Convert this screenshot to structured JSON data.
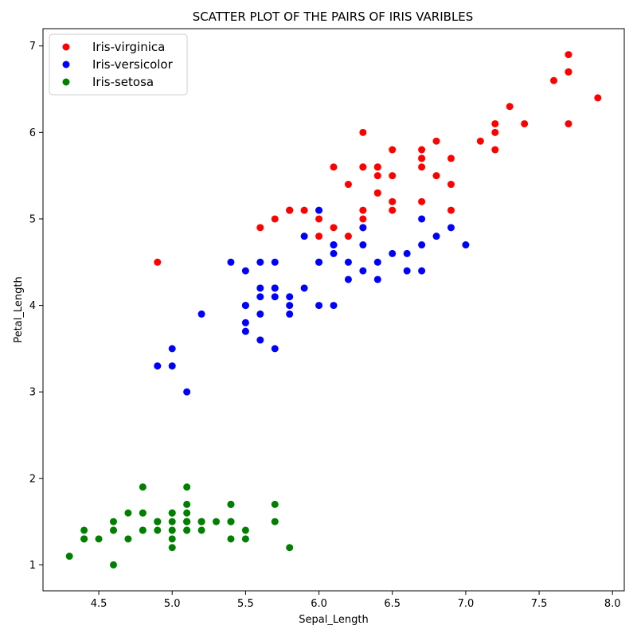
{
  "chart_data": {
    "type": "scatter",
    "title": "SCATTER PLOT OF THE PAIRS OF IRIS VARIBLES",
    "xlabel": "Sepal_Length",
    "ylabel": "Petal_Length",
    "xlim": [
      4.12,
      8.08
    ],
    "ylim": [
      0.7,
      7.2
    ],
    "xticks": [
      "4.5",
      "5.0",
      "5.5",
      "6.0",
      "6.5",
      "7.0",
      "7.5",
      "8.0"
    ],
    "yticks": [
      "1",
      "2",
      "3",
      "4",
      "5",
      "6",
      "7"
    ],
    "grid": false,
    "legend_position": "top-left",
    "series": [
      {
        "name": "Iris-virginica",
        "color": "#ff0000",
        "points": [
          [
            6.3,
            6.0
          ],
          [
            5.8,
            5.1
          ],
          [
            7.1,
            5.9
          ],
          [
            6.3,
            5.6
          ],
          [
            6.5,
            5.8
          ],
          [
            7.6,
            6.6
          ],
          [
            4.9,
            4.5
          ],
          [
            7.3,
            6.3
          ],
          [
            6.7,
            5.8
          ],
          [
            7.2,
            6.1
          ],
          [
            6.5,
            5.1
          ],
          [
            6.4,
            5.3
          ],
          [
            6.8,
            5.5
          ],
          [
            5.7,
            5.0
          ],
          [
            5.8,
            5.1
          ],
          [
            6.4,
            5.3
          ],
          [
            6.5,
            5.5
          ],
          [
            7.7,
            6.7
          ],
          [
            7.7,
            6.9
          ],
          [
            6.0,
            5.0
          ],
          [
            6.9,
            5.7
          ],
          [
            5.6,
            4.9
          ],
          [
            7.7,
            6.7
          ],
          [
            6.3,
            4.9
          ],
          [
            6.7,
            5.7
          ],
          [
            7.2,
            6.0
          ],
          [
            6.2,
            4.8
          ],
          [
            6.1,
            4.9
          ],
          [
            6.4,
            5.6
          ],
          [
            7.2,
            5.8
          ],
          [
            7.4,
            6.1
          ],
          [
            7.9,
            6.4
          ],
          [
            6.4,
            5.6
          ],
          [
            6.3,
            5.1
          ],
          [
            6.1,
            5.6
          ],
          [
            7.7,
            6.1
          ],
          [
            6.3,
            5.6
          ],
          [
            6.4,
            5.5
          ],
          [
            6.0,
            4.8
          ],
          [
            6.9,
            5.4
          ],
          [
            6.7,
            5.6
          ],
          [
            6.9,
            5.1
          ],
          [
            5.8,
            5.1
          ],
          [
            6.8,
            5.9
          ],
          [
            6.7,
            5.7
          ],
          [
            6.7,
            5.2
          ],
          [
            6.3,
            5.0
          ],
          [
            6.5,
            5.2
          ],
          [
            6.2,
            5.4
          ],
          [
            5.9,
            5.1
          ]
        ]
      },
      {
        "name": "Iris-versicolor",
        "color": "#0000ff",
        "points": [
          [
            7.0,
            4.7
          ],
          [
            6.4,
            4.5
          ],
          [
            6.9,
            4.9
          ],
          [
            5.5,
            4.0
          ],
          [
            6.5,
            4.6
          ],
          [
            5.7,
            4.5
          ],
          [
            6.3,
            4.7
          ],
          [
            4.9,
            3.3
          ],
          [
            6.6,
            4.6
          ],
          [
            5.2,
            3.9
          ],
          [
            5.0,
            3.5
          ],
          [
            5.9,
            4.2
          ],
          [
            6.0,
            4.0
          ],
          [
            6.1,
            4.7
          ],
          [
            5.6,
            3.6
          ],
          [
            6.7,
            4.4
          ],
          [
            5.6,
            4.5
          ],
          [
            5.8,
            4.1
          ],
          [
            6.2,
            4.5
          ],
          [
            5.6,
            3.9
          ],
          [
            5.9,
            4.8
          ],
          [
            6.1,
            4.0
          ],
          [
            6.3,
            4.9
          ],
          [
            6.1,
            4.7
          ],
          [
            6.4,
            4.3
          ],
          [
            6.6,
            4.4
          ],
          [
            6.8,
            4.8
          ],
          [
            6.7,
            5.0
          ],
          [
            6.0,
            4.5
          ],
          [
            5.7,
            3.5
          ],
          [
            5.5,
            3.8
          ],
          [
            5.5,
            3.7
          ],
          [
            5.8,
            3.9
          ],
          [
            6.0,
            5.1
          ],
          [
            5.4,
            4.5
          ],
          [
            6.0,
            4.5
          ],
          [
            6.7,
            4.7
          ],
          [
            6.3,
            4.4
          ],
          [
            5.6,
            4.1
          ],
          [
            5.5,
            4.0
          ],
          [
            5.5,
            4.4
          ],
          [
            6.1,
            4.6
          ],
          [
            5.8,
            4.0
          ],
          [
            5.0,
            3.3
          ],
          [
            5.6,
            4.2
          ],
          [
            5.7,
            4.2
          ],
          [
            5.7,
            4.2
          ],
          [
            6.2,
            4.3
          ],
          [
            5.1,
            3.0
          ],
          [
            5.7,
            4.1
          ]
        ]
      },
      {
        "name": "Iris-setosa",
        "color": "#008000",
        "points": [
          [
            5.1,
            1.4
          ],
          [
            4.9,
            1.4
          ],
          [
            4.7,
            1.3
          ],
          [
            4.6,
            1.5
          ],
          [
            5.0,
            1.4
          ],
          [
            5.4,
            1.7
          ],
          [
            4.6,
            1.4
          ],
          [
            5.0,
            1.5
          ],
          [
            4.4,
            1.4
          ],
          [
            4.9,
            1.5
          ],
          [
            5.4,
            1.5
          ],
          [
            4.8,
            1.6
          ],
          [
            4.8,
            1.4
          ],
          [
            4.3,
            1.1
          ],
          [
            5.8,
            1.2
          ],
          [
            5.7,
            1.5
          ],
          [
            5.4,
            1.3
          ],
          [
            5.1,
            1.4
          ],
          [
            5.7,
            1.7
          ],
          [
            5.1,
            1.5
          ],
          [
            5.4,
            1.7
          ],
          [
            5.1,
            1.5
          ],
          [
            4.6,
            1.0
          ],
          [
            5.1,
            1.7
          ],
          [
            4.8,
            1.9
          ],
          [
            5.0,
            1.6
          ],
          [
            5.0,
            1.6
          ],
          [
            5.2,
            1.5
          ],
          [
            5.2,
            1.4
          ],
          [
            4.7,
            1.6
          ],
          [
            4.8,
            1.6
          ],
          [
            5.4,
            1.5
          ],
          [
            5.2,
            1.5
          ],
          [
            5.5,
            1.4
          ],
          [
            4.9,
            1.5
          ],
          [
            5.0,
            1.2
          ],
          [
            5.5,
            1.3
          ],
          [
            4.9,
            1.5
          ],
          [
            4.4,
            1.3
          ],
          [
            5.1,
            1.5
          ],
          [
            5.0,
            1.3
          ],
          [
            4.5,
            1.3
          ],
          [
            4.4,
            1.3
          ],
          [
            5.0,
            1.6
          ],
          [
            5.1,
            1.9
          ],
          [
            4.8,
            1.4
          ],
          [
            5.1,
            1.6
          ],
          [
            4.6,
            1.4
          ],
          [
            5.3,
            1.5
          ],
          [
            5.0,
            1.4
          ]
        ]
      }
    ]
  }
}
